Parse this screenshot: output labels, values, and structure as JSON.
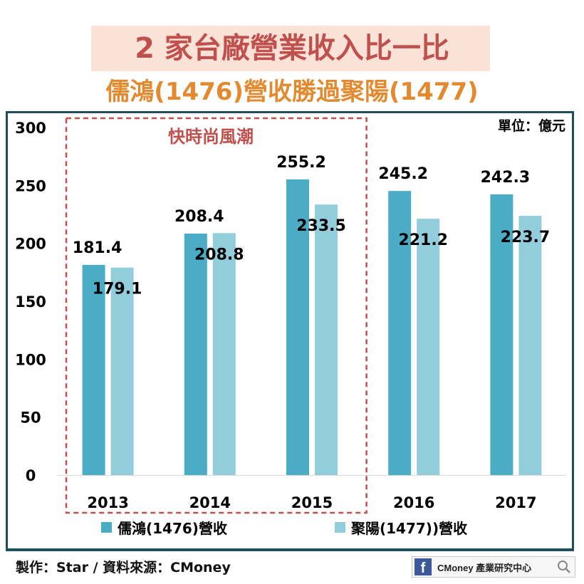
{
  "title": "2 家台廠營業收入比一比",
  "subtitle": "儒鴻(1476)營收勝過聚陽(1477)",
  "unit": "單位：億元",
  "annotation": "快時尚風潮",
  "credit": "製作：Star / 資料來源：CMoney",
  "brand": {
    "name": "CMoney 產業研究中心",
    "icon": "facebook-icon"
  },
  "colors": {
    "series1": "#4bacc6",
    "series2": "#92cddc",
    "title": "#c0504d",
    "subtitle": "#e38a2f",
    "highlight": "#c0504d"
  },
  "chart_data": {
    "type": "bar",
    "categories": [
      "2013",
      "2014",
      "2015",
      "2016",
      "2017"
    ],
    "series": [
      {
        "name": "儒鴻(1476)營收",
        "values": [
          181.4,
          208.4,
          255.2,
          245.2,
          242.3
        ],
        "labels": [
          "181.4",
          "208.4",
          "255.2",
          "245.2",
          "242.3"
        ]
      },
      {
        "name": "聚陽(1477))營收",
        "values": [
          179.1,
          208.8,
          233.5,
          221.2,
          223.7
        ],
        "labels": [
          "179.1",
          "208.8",
          "233.5",
          "221.2",
          "223.7"
        ]
      }
    ],
    "ylim": [
      0,
      300
    ],
    "yticks": [
      "0",
      "50",
      "100",
      "150",
      "200",
      "250",
      "300"
    ],
    "highlight_categories": [
      "2013",
      "2014",
      "2015"
    ],
    "legend": "bottom",
    "grid": false
  }
}
